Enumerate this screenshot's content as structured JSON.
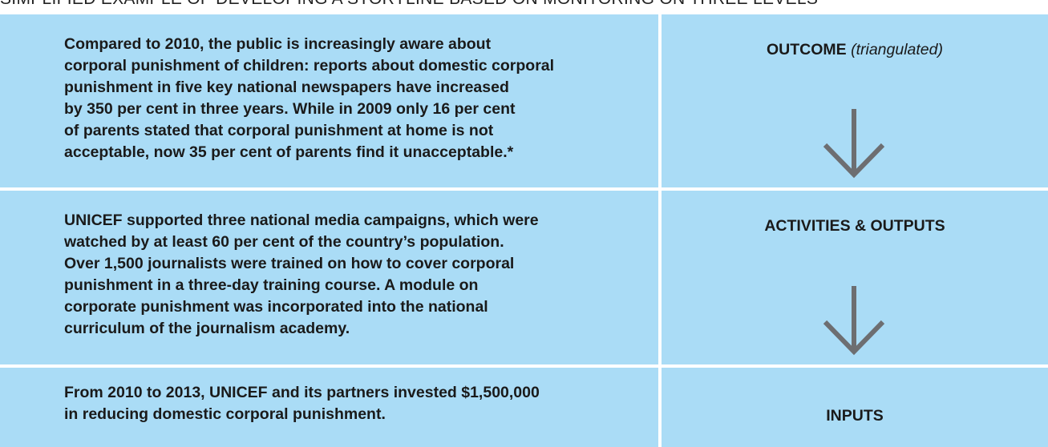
{
  "title": "SIMPLIFIED EXAMPLE OF DEVELOPING A STORYLINE BASED ON MONITORING ON THREE LEVELS",
  "rows": [
    {
      "lines": [
        "Compared to 2010, the public is increasingly aware about",
        "corporal punishment of children: reports about domestic corporal",
        "punishment in five key national newspapers have increased",
        "by 350 per cent in three years. While in 2009 only 16 per cent",
        "of parents stated that corporal punishment at home is not",
        "acceptable, now 35 per cent of parents find it unacceptable.*"
      ],
      "label": "OUTCOME",
      "note": "(triangulated)"
    },
    {
      "lines": [
        "UNICEF supported three national media campaigns, which were",
        "watched by at least 60 per cent of the country’s population.",
        "Over 1,500 journalists were trained on how to cover corporal",
        "punishment in a three-day training course. A module on",
        "corporate punishment was incorporated into the national",
        "curriculum of the journalism academy."
      ],
      "label": "ACTIVITIES & OUTPUTS"
    },
    {
      "lines": [
        "From 2010 to 2013, UNICEF and its partners invested $1,500,000",
        "in reducing domestic corporal punishment."
      ],
      "label": "INPUTS"
    }
  ]
}
